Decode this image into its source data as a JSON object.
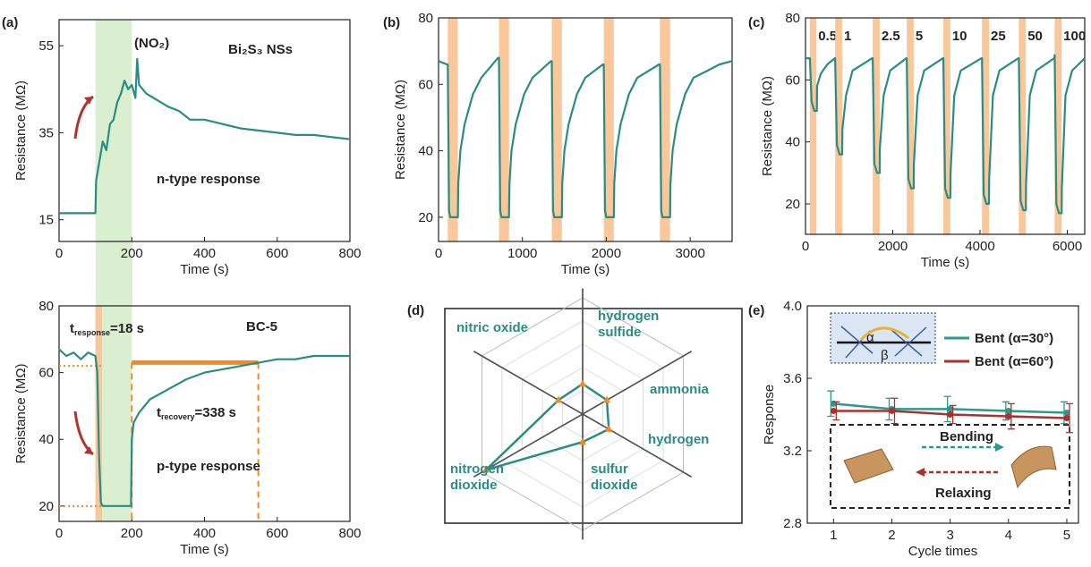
{
  "chart_data": [
    {
      "type": "line",
      "panel_label": "(a)",
      "molecule": "(NO₂)",
      "material": "Bi₂S₃ NSs",
      "note": "n-type response",
      "xlabel": "Time (s)",
      "ylabel": "Resistance (MΩ)",
      "xlim": [
        0,
        800
      ],
      "xticks": [
        0,
        200,
        400,
        600,
        800
      ],
      "ylim": [
        10,
        61
      ],
      "yticks": [
        15,
        35,
        55
      ],
      "shade": [
        100,
        200
      ],
      "shade_color": "#d9efcf",
      "x": [
        0,
        100,
        102,
        110,
        120,
        130,
        140,
        150,
        160,
        170,
        180,
        190,
        200,
        210,
        215,
        220,
        240,
        260,
        280,
        300,
        330,
        360,
        400,
        450,
        500,
        550,
        600,
        650,
        700,
        750,
        800
      ],
      "series": [
        {
          "color": "#2a8c82",
          "values": [
            16.5,
            16.5,
            24,
            28,
            33,
            31,
            37,
            38,
            42,
            44,
            47,
            45,
            46,
            43,
            52,
            46,
            44,
            43,
            42,
            41,
            40,
            38,
            38,
            37,
            36,
            35.5,
            35,
            34.5,
            34.5,
            34,
            33.5
          ]
        }
      ]
    },
    {
      "type": "line",
      "material": "BC-5",
      "note": "p-type response",
      "response_time": {
        "symbol": "t",
        "subscript": "response",
        "text": "=18 s"
      },
      "recovery_time": {
        "symbol": "t",
        "subscript": "recovery",
        "text": "=338 s"
      },
      "xlabel": "Time (s)",
      "ylabel": "Resistance (MΩ)",
      "xlim": [
        0,
        800
      ],
      "xticks": [
        0,
        200,
        400,
        600,
        800
      ],
      "ylim": [
        15.4,
        80
      ],
      "yticks": [
        20,
        40,
        60,
        80
      ],
      "shade": [
        100,
        200
      ],
      "shade_color": "#d9efcf",
      "bands": [
        [
          100,
          118
        ]
      ],
      "band_color": "#f9c79a",
      "hlines": [
        62,
        20
      ],
      "vlines": [
        200,
        548
      ],
      "plateau": 63,
      "guide_color": "#f08a24",
      "x": [
        0,
        20,
        40,
        60,
        80,
        100,
        105,
        110,
        115,
        120,
        150,
        198,
        200,
        205,
        220,
        250,
        300,
        350,
        400,
        450,
        500,
        550,
        600,
        650,
        700,
        750,
        800
      ],
      "series": [
        {
          "color": "#2a8c82",
          "values": [
            67,
            65,
            66,
            64,
            66,
            65,
            60,
            35,
            21,
            20,
            20,
            20,
            40,
            45,
            48,
            52,
            55,
            58,
            60,
            61,
            62,
            63,
            64,
            64,
            65,
            65,
            65
          ]
        }
      ]
    },
    {
      "type": "line",
      "panel_label": "(b)",
      "xlabel": "Time (s)",
      "ylabel": "Resistance (MΩ)",
      "xlim": [
        0,
        3500
      ],
      "xticks": [
        0,
        1000,
        2000,
        3000
      ],
      "ylim": [
        12.7,
        80
      ],
      "yticks": [
        20,
        40,
        60,
        80
      ],
      "bands": [
        [
          110,
          230
        ],
        [
          720,
          840
        ],
        [
          1350,
          1470
        ],
        [
          1970,
          2090
        ],
        [
          2640,
          2760
        ]
      ],
      "band_color": "#f9c79a",
      "x": [
        0,
        100,
        110,
        125,
        140,
        230,
        235,
        260,
        310,
        410,
        510,
        710,
        720,
        735,
        750,
        840,
        845,
        870,
        920,
        1020,
        1120,
        1340,
        1350,
        1365,
        1380,
        1470,
        1475,
        1500,
        1550,
        1650,
        1750,
        1960,
        1970,
        1985,
        2000,
        2090,
        2095,
        2120,
        2170,
        2270,
        2370,
        2630,
        2640,
        2655,
        2670,
        2760,
        2765,
        2790,
        2840,
        2940,
        3040,
        3200,
        3350,
        3500
      ],
      "series": [
        {
          "color": "#2a8c82",
          "values": [
            67,
            66,
            66,
            22,
            20,
            20,
            30,
            40,
            48,
            57,
            62,
            68,
            68,
            22,
            20,
            20,
            30,
            40,
            48,
            57,
            62,
            67,
            67,
            22,
            20,
            20,
            30,
            40,
            48,
            57,
            62,
            66,
            66,
            22,
            20,
            20,
            30,
            40,
            48,
            57,
            62,
            66,
            66,
            22,
            20,
            20,
            30,
            40,
            48,
            57,
            62,
            64,
            66,
            67
          ]
        }
      ]
    },
    {
      "type": "line",
      "panel_label": "(c)",
      "xlabel": "Time (s)",
      "ylabel": "Resistance (MΩ)",
      "xlim": [
        0,
        6400
      ],
      "xticks": [
        0,
        2000,
        4000,
        6000
      ],
      "ylim": [
        10.2,
        80
      ],
      "yticks": [
        20,
        40,
        60,
        80
      ],
      "bands": [
        [
          100,
          250
        ],
        [
          680,
          840
        ],
        [
          1540,
          1700
        ],
        [
          2320,
          2480
        ],
        [
          3160,
          3320
        ],
        [
          4045,
          4205
        ],
        [
          4890,
          5050
        ],
        [
          5710,
          5870
        ]
      ],
      "band_color": "#f9c79a",
      "band_labels": [
        "0.5",
        "1",
        "2.5",
        "5",
        "10",
        "25",
        "50",
        "100"
      ],
      "x": [
        0,
        100,
        140,
        200,
        260,
        265,
        350,
        500,
        670,
        680,
        720,
        780,
        840,
        845,
        930,
        1080,
        1530,
        1540,
        1580,
        1640,
        1700,
        1705,
        1790,
        1940,
        2310,
        2320,
        2360,
        2420,
        2480,
        2485,
        2570,
        2720,
        3150,
        3160,
        3200,
        3260,
        3320,
        3325,
        3410,
        3560,
        4035,
        4045,
        4085,
        4145,
        4205,
        4210,
        4295,
        4445,
        4880,
        4890,
        4930,
        4990,
        5050,
        5055,
        5140,
        5290,
        5700,
        5710,
        5750,
        5810,
        5870,
        5875,
        5960,
        6110,
        6400
      ],
      "series": [
        {
          "color": "#2a8c82",
          "values": [
            67,
            67,
            53,
            50,
            50,
            58,
            62,
            65,
            67,
            67,
            39,
            36,
            36,
            44,
            55,
            63,
            67,
            67,
            33,
            30,
            30,
            38,
            55,
            63,
            67,
            67,
            28,
            25,
            25,
            33,
            55,
            63,
            67,
            67,
            25,
            22,
            22,
            30,
            55,
            63,
            67,
            67,
            23,
            20,
            20,
            28,
            55,
            63,
            67,
            67,
            21,
            18,
            18,
            26,
            55,
            63,
            67,
            68,
            20,
            17,
            17,
            25,
            55,
            63,
            67
          ]
        }
      ]
    },
    {
      "type": "radar",
      "panel_label": "(d)",
      "ylim": [
        0,
        5
      ],
      "color": "#2a8c82",
      "marker_color": "#f08a24",
      "categories": [
        "nitric oxide",
        "hydrogen sulfide",
        "ammonia",
        "hydrogen",
        "sulfur dioxide",
        "nitrogen dioxide"
      ],
      "values": [
        1.2,
        1.3,
        1.2,
        1.3,
        1.2,
        4.8
      ]
    },
    {
      "type": "errorline",
      "panel_label": "(e)",
      "xlabel": "Cycle times",
      "ylabel": "Response",
      "xlim": [
        0.55,
        5.2
      ],
      "xticks": [
        1,
        2,
        3,
        4,
        5
      ],
      "ylim": [
        2.8,
        4.0
      ],
      "yticks": [
        2.8,
        3.2,
        3.6,
        {
          "value": 4.0,
          "label": "4.0"
        }
      ],
      "x": [
        1,
        2,
        3,
        4,
        5
      ],
      "series": [
        {
          "name": "Bent (α=30°)",
          "color": "#2a9a8e",
          "values": [
            3.46,
            3.43,
            3.43,
            3.42,
            3.41
          ],
          "errors": [
            0.07,
            0.06,
            0.07,
            0.05,
            0.06
          ]
        },
        {
          "name": "Bent (α=60°)",
          "color": "#a8322d",
          "values": [
            3.42,
            3.42,
            3.4,
            3.39,
            3.38
          ],
          "errors": [
            0.05,
            0.07,
            0.05,
            0.07,
            0.08
          ]
        }
      ],
      "inset_symbols": [
        "α",
        "β"
      ],
      "inset_labels": [
        "Bending",
        "Relaxing"
      ]
    }
  ]
}
